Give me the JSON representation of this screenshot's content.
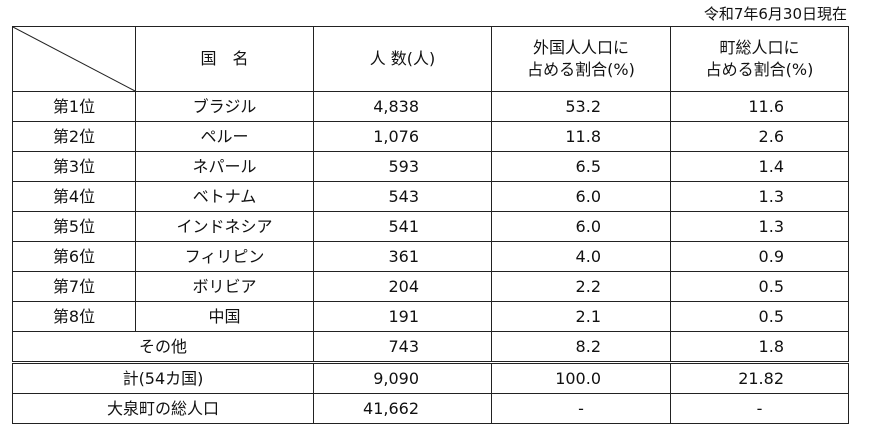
{
  "date_note": "令和7年6月30日現在",
  "header": {
    "country": "国　名",
    "count": "人 数(人)",
    "foreign_share_line1": "外国人人口に",
    "foreign_share_line2": "占める割合(%)",
    "town_share_line1": "町総人口に",
    "town_share_line2": "占める割合(%)"
  },
  "rows": [
    {
      "rank": "第1位",
      "country": "ブラジル",
      "count": "4,838",
      "foreign_share": "53.2",
      "town_share": "11.6"
    },
    {
      "rank": "第2位",
      "country": "ペルー",
      "count": "1,076",
      "foreign_share": "11.8",
      "town_share": "2.6"
    },
    {
      "rank": "第3位",
      "country": "ネパール",
      "count": "593",
      "foreign_share": "6.5",
      "town_share": "1.4"
    },
    {
      "rank": "第4位",
      "country": "ベトナム",
      "count": "543",
      "foreign_share": "6.0",
      "town_share": "1.3"
    },
    {
      "rank": "第5位",
      "country": "インドネシア",
      "count": "541",
      "foreign_share": "6.0",
      "town_share": "1.3"
    },
    {
      "rank": "第6位",
      "country": "フィリピン",
      "count": "361",
      "foreign_share": "4.0",
      "town_share": "0.9"
    },
    {
      "rank": "第7位",
      "country": "ボリビア",
      "count": "204",
      "foreign_share": "2.2",
      "town_share": "0.5"
    },
    {
      "rank": "第8位",
      "country": "中国",
      "count": "191",
      "foreign_share": "2.1",
      "town_share": "0.5"
    }
  ],
  "others": {
    "label": "その他",
    "count": "743",
    "foreign_share": "8.2",
    "town_share": "1.8"
  },
  "total": {
    "label": "計(54カ国)",
    "count": "9,090",
    "foreign_share": "100.0",
    "town_share": "21.82"
  },
  "town_total": {
    "label": "大泉町の総人口",
    "count": "41,662",
    "foreign_share": "-",
    "town_share": "-"
  }
}
